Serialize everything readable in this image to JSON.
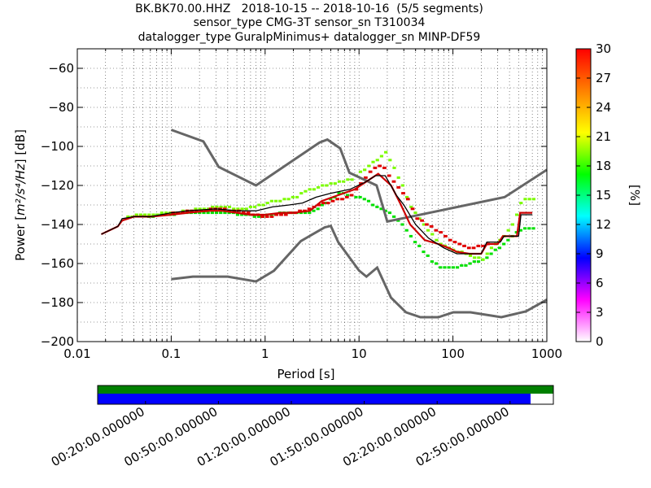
{
  "title_lines": [
    "BK.BK70.00.HHZ   2018-10-15 -- 2018-10-16  (5/5 segments)",
    "sensor_type CMG-3T sensor_sn T310034",
    "datalogger_type GuralpMinimus+ datalogger_sn MINP-DF59"
  ],
  "chart_data": [
    {
      "type": "heatmap",
      "xlabel": "Period [s]",
      "ylabel": "Power [m²/s⁴/Hz] [dB]",
      "ylabel_parts": {
        "prefix": "Power [",
        "expr": "m²/s⁴/Hz",
        "suffix": "] [dB]"
      },
      "xscale": "log",
      "xlim": [
        0.01,
        1000
      ],
      "ylim": [
        -200,
        -50
      ],
      "x_ticks": [
        0.01,
        0.1,
        1,
        10,
        100,
        1000
      ],
      "x_tick_labels": [
        "0.01",
        "0.1",
        "1",
        "10",
        "100",
        "1000"
      ],
      "y_ticks": [
        -200,
        -180,
        -160,
        -140,
        -120,
        -100,
        -80,
        -60
      ],
      "y_tick_labels": [
        "−200",
        "−180",
        "−160",
        "−140",
        "−120",
        "−100",
        "−80",
        "−60"
      ],
      "grid": true,
      "colorbar": {
        "label": "[%]",
        "range": [
          0,
          30
        ],
        "ticks": [
          0,
          3,
          6,
          9,
          12,
          15,
          18,
          21,
          24,
          27,
          30
        ],
        "tick_labels": [
          "0",
          "3",
          "6",
          "9",
          "12",
          "15",
          "18",
          "21",
          "24",
          "27",
          "30"
        ],
        "colors": [
          "#ffffff",
          "#ff00ff",
          "#0000ff",
          "#00ffff",
          "#00ff00",
          "#ffff00",
          "#ff8000",
          "#ff0000"
        ]
      },
      "noise_model_high": [
        [
          0.1,
          -91.5
        ],
        [
          0.22,
          -97.4
        ],
        [
          0.32,
          -110.5
        ],
        [
          0.8,
          -120
        ],
        [
          3.8,
          -98
        ],
        [
          4.6,
          -96.5
        ],
        [
          6.3,
          -101
        ],
        [
          7.9,
          -113.5
        ],
        [
          15.4,
          -120
        ],
        [
          20,
          -138.5
        ],
        [
          354.8,
          -126
        ],
        [
          1000,
          -112
        ]
      ],
      "noise_model_low": [
        [
          0.1,
          -168
        ],
        [
          0.17,
          -166.7
        ],
        [
          0.4,
          -166.7
        ],
        [
          0.8,
          -169.2
        ],
        [
          1.24,
          -163.7
        ],
        [
          2.4,
          -148.5
        ],
        [
          4.3,
          -141.5
        ],
        [
          5,
          -140.7
        ],
        [
          6,
          -149
        ],
        [
          10,
          -163.6
        ],
        [
          12,
          -166.7
        ],
        [
          15.6,
          -162.1
        ],
        [
          21.9,
          -177.5
        ],
        [
          31.6,
          -185
        ],
        [
          45,
          -187.5
        ],
        [
          70,
          -187.5
        ],
        [
          101,
          -185
        ],
        [
          154,
          -185
        ],
        [
          328,
          -187.5
        ],
        [
          600,
          -184.5
        ],
        [
          1000,
          -178.5
        ]
      ],
      "mode_curve": [
        [
          0.018,
          -145
        ],
        [
          0.022,
          -143
        ],
        [
          0.027,
          -141
        ],
        [
          0.03,
          -138
        ],
        [
          0.04,
          -136
        ],
        [
          0.06,
          -136
        ],
        [
          0.1,
          -135
        ],
        [
          0.15,
          -134
        ],
        [
          0.25,
          -133
        ],
        [
          0.35,
          -133
        ],
        [
          0.5,
          -134
        ],
        [
          0.7,
          -135
        ],
        [
          1,
          -135
        ],
        [
          1.5,
          -134
        ],
        [
          2,
          -134
        ],
        [
          3,
          -133
        ],
        [
          4,
          -128
        ],
        [
          6,
          -125
        ],
        [
          9,
          -122
        ],
        [
          12,
          -118
        ],
        [
          16,
          -114
        ],
        [
          22,
          -120
        ],
        [
          28,
          -130
        ],
        [
          35,
          -140
        ],
        [
          50,
          -148
        ],
        [
          70,
          -150
        ],
        [
          90,
          -152
        ],
        [
          110,
          -154
        ],
        [
          150,
          -155
        ],
        [
          200,
          -155
        ],
        [
          230,
          -150
        ],
        [
          300,
          -150
        ],
        [
          340,
          -146
        ],
        [
          480,
          -146
        ],
        [
          520,
          -134
        ],
        [
          700,
          -134
        ]
      ],
      "mean_curve": [
        [
          0.018,
          -145
        ],
        [
          0.022,
          -143
        ],
        [
          0.027,
          -141
        ],
        [
          0.03,
          -137
        ],
        [
          0.04,
          -136
        ],
        [
          0.06,
          -136
        ],
        [
          0.1,
          -134
        ],
        [
          0.15,
          -133
        ],
        [
          0.3,
          -132
        ],
        [
          0.5,
          -133
        ],
        [
          0.8,
          -133
        ],
        [
          1.2,
          -131
        ],
        [
          1.8,
          -130
        ],
        [
          2.5,
          -129
        ],
        [
          3.5,
          -126
        ],
        [
          5,
          -124
        ],
        [
          8,
          -122
        ],
        [
          12,
          -118
        ],
        [
          15,
          -115
        ],
        [
          19,
          -115
        ],
        [
          25,
          -125
        ],
        [
          30,
          -130
        ],
        [
          40,
          -140
        ],
        [
          55,
          -147
        ],
        [
          80,
          -152
        ],
        [
          110,
          -155
        ],
        [
          200,
          -155
        ],
        [
          230,
          -149
        ],
        [
          320,
          -149
        ],
        [
          350,
          -146
        ],
        [
          500,
          -146
        ],
        [
          530,
          -135
        ],
        [
          700,
          -135
        ]
      ],
      "green_band": [
        [
          0.03,
          -136
        ],
        [
          0.1,
          -134
        ],
        [
          0.3,
          -131
        ],
        [
          0.6,
          -132
        ],
        [
          1,
          -129
        ],
        [
          2,
          -126
        ],
        [
          3,
          -122
        ],
        [
          5,
          -119
        ],
        [
          8,
          -117
        ],
        [
          10,
          -113
        ],
        [
          14,
          -108
        ],
        [
          17,
          -105
        ],
        [
          19,
          -103
        ],
        [
          22,
          -110
        ],
        [
          28,
          -120
        ],
        [
          35,
          -132
        ],
        [
          50,
          -142
        ],
        [
          70,
          -150
        ],
        [
          100,
          -153
        ],
        [
          150,
          -156
        ],
        [
          200,
          -158
        ],
        [
          250,
          -152
        ],
        [
          330,
          -146
        ],
        [
          420,
          -140
        ],
        [
          530,
          -127
        ],
        [
          700,
          -127
        ]
      ],
      "green_band_low": [
        [
          0.05,
          -136
        ],
        [
          0.15,
          -134
        ],
        [
          0.4,
          -134
        ],
        [
          0.8,
          -136
        ],
        [
          1.5,
          -134
        ],
        [
          3,
          -134
        ],
        [
          6,
          -124
        ],
        [
          10,
          -126
        ],
        [
          15,
          -131
        ],
        [
          20,
          -134
        ],
        [
          28,
          -140
        ],
        [
          40,
          -150
        ],
        [
          55,
          -158
        ],
        [
          70,
          -162
        ],
        [
          100,
          -162
        ],
        [
          150,
          -160
        ],
        [
          200,
          -158
        ],
        [
          300,
          -152
        ],
        [
          400,
          -146
        ],
        [
          530,
          -142
        ],
        [
          700,
          -142
        ]
      ],
      "red_band": [
        [
          0.1,
          -134
        ],
        [
          0.3,
          -132
        ],
        [
          0.6,
          -134
        ],
        [
          1,
          -136
        ],
        [
          2,
          -134
        ],
        [
          5,
          -128
        ],
        [
          8,
          -125
        ],
        [
          11,
          -116
        ],
        [
          14,
          -111
        ],
        [
          17,
          -109
        ],
        [
          22,
          -118
        ],
        [
          30,
          -125
        ],
        [
          40,
          -137
        ],
        [
          60,
          -142
        ],
        [
          90,
          -148
        ],
        [
          150,
          -152
        ],
        [
          250,
          -150
        ]
      ]
    },
    {
      "type": "timeline",
      "tick_labels": [
        "00:20:00.000000",
        "00:50:00.000000",
        "01:20:00.000000",
        "01:50:00.000000",
        "02:20:00.000000",
        "02:50:00.000000"
      ],
      "tick_fractions": [
        0.105,
        0.265,
        0.425,
        0.585,
        0.745,
        0.905
      ],
      "bars": [
        {
          "color": "#008000",
          "start": 0.0,
          "end": 1.0
        },
        {
          "color": "#0000ff",
          "start": 0.0,
          "end": 0.95
        }
      ]
    }
  ]
}
